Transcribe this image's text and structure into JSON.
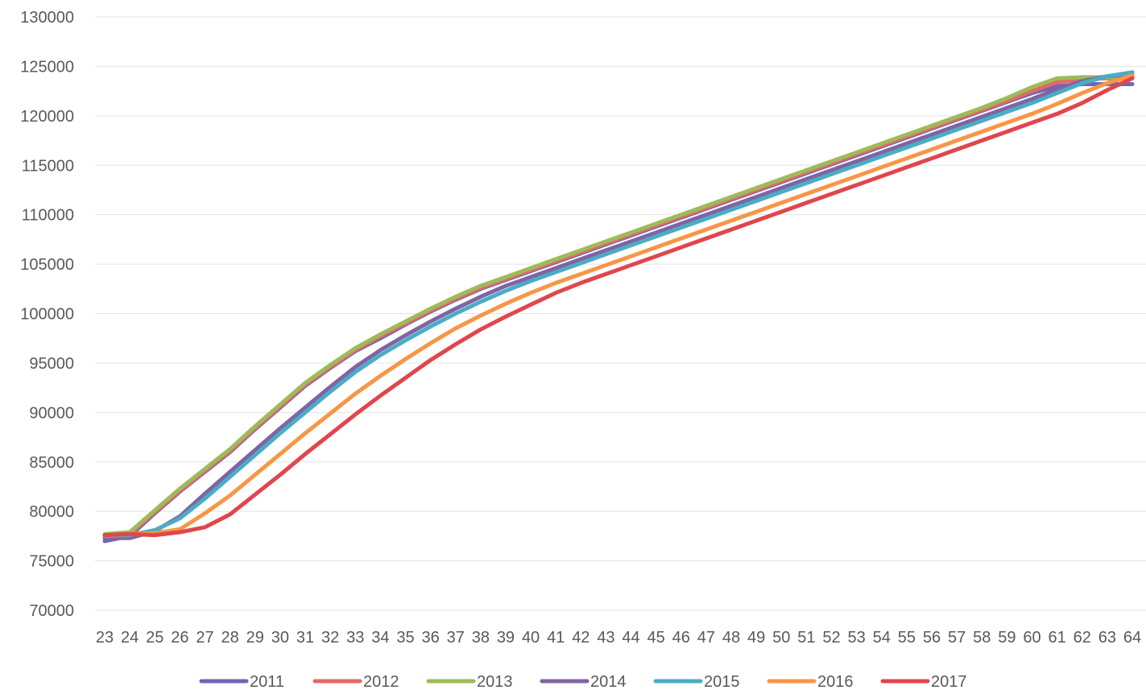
{
  "chart_data": {
    "type": "line",
    "title": "",
    "xlabel": "",
    "ylabel": "",
    "ylim": [
      70000,
      130000
    ],
    "y_ticks": [
      70000,
      75000,
      80000,
      85000,
      90000,
      95000,
      100000,
      105000,
      110000,
      115000,
      120000,
      125000,
      130000
    ],
    "grid": true,
    "legend_position": "bottom",
    "x": [
      23,
      24,
      25,
      26,
      27,
      28,
      29,
      30,
      31,
      32,
      33,
      34,
      35,
      36,
      37,
      38,
      39,
      40,
      41,
      42,
      43,
      44,
      45,
      46,
      47,
      48,
      49,
      50,
      51,
      52,
      53,
      54,
      55,
      56,
      57,
      58,
      59,
      60,
      61,
      62,
      63,
      64
    ],
    "series": [
      {
        "name": "2011",
        "color": "#6e66b5",
        "values": [
          77000,
          77500,
          79800,
          82000,
          84000,
          86000,
          88300,
          90500,
          92700,
          94500,
          96200,
          97500,
          98900,
          100200,
          101400,
          102500,
          103400,
          104300,
          105200,
          106100,
          107000,
          107900,
          108800,
          109700,
          110600,
          111500,
          112400,
          113300,
          114200,
          115100,
          116000,
          116900,
          117800,
          118700,
          119600,
          120500,
          121400,
          122300,
          123000,
          123200,
          123200,
          123200
        ]
      },
      {
        "name": "2012",
        "color": "#e26a63",
        "values": [
          77600,
          77700,
          79900,
          82100,
          84100,
          86100,
          88400,
          90600,
          92800,
          94600,
          96300,
          97700,
          99000,
          100300,
          101500,
          102600,
          103500,
          104400,
          105300,
          106200,
          107100,
          108000,
          108900,
          109800,
          110700,
          111600,
          112500,
          113400,
          114300,
          115200,
          116100,
          117000,
          117900,
          118800,
          119700,
          120600,
          121500,
          122500,
          123400,
          123700,
          123800,
          123800
        ]
      },
      {
        "name": "2013",
        "color": "#9dbb59",
        "values": [
          77700,
          77900,
          80100,
          82300,
          84300,
          86300,
          88600,
          90800,
          93000,
          94800,
          96500,
          97900,
          99200,
          100500,
          101700,
          102800,
          103700,
          104600,
          105500,
          106400,
          107300,
          108200,
          109100,
          110000,
          110900,
          111800,
          112700,
          113600,
          114500,
          115400,
          116300,
          117200,
          118100,
          119000,
          119900,
          120800,
          121800,
          122900,
          123800,
          123900,
          123900,
          124000
        ]
      },
      {
        "name": "2014",
        "color": "#8064a2",
        "values": [
          77300,
          77300,
          78000,
          79500,
          81800,
          84000,
          86200,
          88400,
          90500,
          92600,
          94600,
          96300,
          97800,
          99200,
          100500,
          101700,
          102800,
          103700,
          104600,
          105500,
          106400,
          107300,
          108200,
          109100,
          110000,
          110900,
          111800,
          112700,
          113600,
          114500,
          115400,
          116300,
          117200,
          118100,
          119000,
          119900,
          120800,
          121700,
          122700,
          123500,
          124000,
          124200
        ]
      },
      {
        "name": "2015",
        "color": "#4bacc6",
        "values": [
          77500,
          77600,
          78100,
          79300,
          81300,
          83500,
          85700,
          87900,
          90000,
          92100,
          94100,
          95800,
          97300,
          98700,
          100000,
          101200,
          102300,
          103300,
          104200,
          105100,
          106000,
          106900,
          107800,
          108700,
          109600,
          110500,
          111400,
          112300,
          113200,
          114100,
          115000,
          115900,
          116800,
          117700,
          118600,
          119500,
          120400,
          121300,
          122300,
          123300,
          124000,
          124400
        ]
      },
      {
        "name": "2016",
        "color": "#f79646",
        "values": [
          77600,
          77700,
          77800,
          78200,
          79800,
          81600,
          83700,
          85800,
          87900,
          89900,
          91900,
          93700,
          95400,
          97000,
          98500,
          99800,
          101000,
          102100,
          103100,
          104000,
          104900,
          105800,
          106700,
          107600,
          108500,
          109400,
          110300,
          111200,
          112100,
          113000,
          113900,
          114800,
          115700,
          116600,
          117500,
          118400,
          119300,
          120200,
          121200,
          122300,
          123300,
          124100
        ]
      },
      {
        "name": "2017",
        "color": "#e0464c",
        "values": [
          77600,
          77700,
          77600,
          77900,
          78400,
          79700,
          81700,
          83700,
          85800,
          87800,
          89800,
          91700,
          93500,
          95300,
          96900,
          98400,
          99700,
          100900,
          102100,
          103100,
          104000,
          104900,
          105800,
          106700,
          107600,
          108500,
          109400,
          110300,
          111200,
          112100,
          113000,
          113900,
          114800,
          115700,
          116600,
          117500,
          118400,
          119300,
          120200,
          121300,
          122600,
          123800
        ]
      }
    ]
  }
}
